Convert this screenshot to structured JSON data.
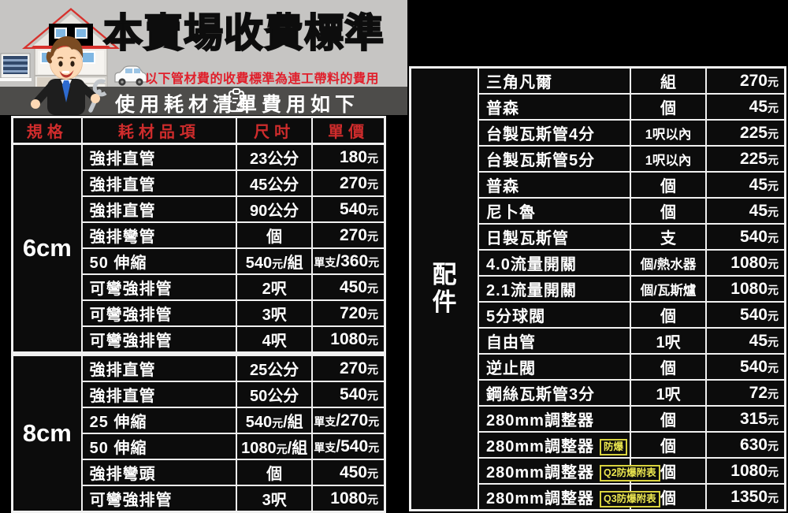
{
  "header": {
    "title": "本賣場收費標準",
    "subtitle": "以下管材費的收費標準為連工帶料的費用",
    "band_text": "使用耗材清單費用如下",
    "icons": [
      "house-illustration",
      "mascot-man-with-wrench",
      "white-car",
      "clipboard-pencil-icon"
    ]
  },
  "left_table": {
    "columns": [
      "規格",
      "耗材品項",
      "尺吋",
      "單價"
    ],
    "groups": [
      {
        "spec": "6cm",
        "rows": [
          {
            "item": "強排直管",
            "size": "23公分",
            "price": "180元"
          },
          {
            "item": "強排直管",
            "size": "45公分",
            "price": "270元"
          },
          {
            "item": "強排直管",
            "size": "90公分",
            "price": "540元"
          },
          {
            "item": "強排彎管",
            "size": "個",
            "price": "270元"
          },
          {
            "item": "50 伸縮",
            "size": "540元/組",
            "price": "單支/360元"
          },
          {
            "item": "可彎強排管",
            "size": "2呎",
            "price": "450元"
          },
          {
            "item": "可彎強排管",
            "size": "3呎",
            "price": "720元"
          },
          {
            "item": "可彎強排管",
            "size": "4呎",
            "price": "1080元"
          }
        ]
      },
      {
        "spec": "8cm",
        "rows": [
          {
            "item": "強排直管",
            "size": "25公分",
            "price": "270元"
          },
          {
            "item": "強排直管",
            "size": "50公分",
            "price": "540元"
          },
          {
            "item": "25 伸縮",
            "size": "540元/組",
            "price": "單支/270元"
          },
          {
            "item": "50 伸縮",
            "size": "1080元/組",
            "price": "單支/540元"
          },
          {
            "item": "強排彎頭",
            "size": "個",
            "price": "450元"
          },
          {
            "item": "可彎強排管",
            "size": "3呎",
            "price": "1080元"
          }
        ]
      }
    ]
  },
  "right_table": {
    "label": "配件",
    "rows": [
      {
        "item": "三角凡爾",
        "unit": "組",
        "price": "270元"
      },
      {
        "item": "普森",
        "unit": "個",
        "price": "45元"
      },
      {
        "item": "台製瓦斯管4分",
        "unit": "1呎以內",
        "price": "225元"
      },
      {
        "item": "台製瓦斯管5分",
        "unit": "1呎以內",
        "price": "225元"
      },
      {
        "item": "普森",
        "unit": "個",
        "price": "45元"
      },
      {
        "item": "尼卜魯",
        "unit": "個",
        "price": "45元"
      },
      {
        "item": "日製瓦斯管",
        "unit": "支",
        "price": "540元"
      },
      {
        "item": "4.0流量開關",
        "unit": "個/熱水器",
        "price": "1080元"
      },
      {
        "item": "2.1流量開關",
        "unit": "個/瓦斯爐",
        "price": "1080元"
      },
      {
        "item": "5分球閥",
        "unit": "個",
        "price": "540元"
      },
      {
        "item": "自由管",
        "unit": "1呎",
        "price": "45元"
      },
      {
        "item": "逆止閥",
        "unit": "個",
        "price": "540元"
      },
      {
        "item": "鋼絲瓦斯管3分",
        "unit": "1呎",
        "price": "72元"
      },
      {
        "item": "280mm調整器",
        "unit": "個",
        "price": "315元"
      },
      {
        "item": "280mm調整器",
        "badge": "防爆",
        "unit": "個",
        "price": "630元"
      },
      {
        "item": "280mm調整器",
        "badge": "Q2防爆附表",
        "unit": "個",
        "price": "1080元"
      },
      {
        "item": "280mm調整器",
        "badge": "Q3防爆附表",
        "unit": "個",
        "price": "1350元"
      }
    ]
  },
  "colors": {
    "page_bg": "#000000",
    "header_bg": "#c6c5c3",
    "band_bg": "#4d4c4a",
    "table_bg": "#0c0c0c",
    "border": "#f0f0f0",
    "header_red": "#cf2c2c",
    "subtitle_red": "#e01f2b",
    "badge_yellow": "#ece74f",
    "roof_red": "#d7312c",
    "tie_blue": "#2e6bd0"
  }
}
